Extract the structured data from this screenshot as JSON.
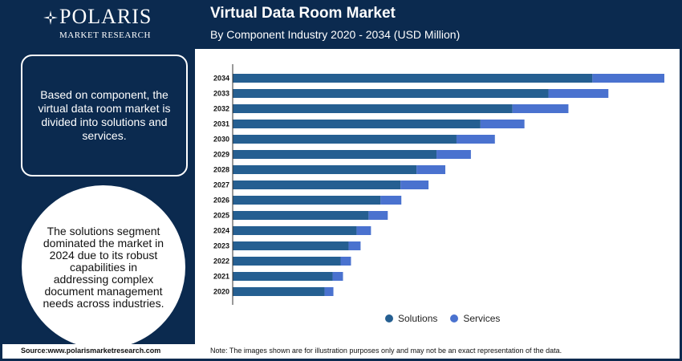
{
  "header": {
    "logo_text": "POLARIS",
    "logo_subtitle": "MARKET RESEARCH",
    "title": "Virtual Data Room Market",
    "subtitle": "By Component Industry 2020 - 2034 (USD Million)"
  },
  "left_panel": {
    "box_text": "Based on component, the virtual data room market is divided into solutions and services.",
    "circle_text": "The solutions segment dominated the market in 2024 due to its robust capabilities in addressing complex document management needs across industries."
  },
  "footer": {
    "source": "Source:www.polarismarketresearch.com",
    "note": "Note: The images shown are for illustration purposes only and may not be an exact representation of the data."
  },
  "colors": {
    "background": "#ffffff",
    "navy": "#0b2a4f",
    "solutions": "#255f91",
    "services": "#4a72cf"
  },
  "chart_data": {
    "type": "bar",
    "orientation": "horizontal",
    "stacked": true,
    "categories": [
      "2034",
      "2033",
      "2032",
      "2031",
      "2030",
      "2029",
      "2028",
      "2027",
      "2026",
      "2025",
      "2024",
      "2023",
      "2022",
      "2021",
      "2020"
    ],
    "series": [
      {
        "name": "Solutions",
        "color": "#255f91",
        "values": [
          4500,
          3950,
          3500,
          3100,
          2800,
          2550,
          2300,
          2100,
          1850,
          1700,
          1550,
          1450,
          1350,
          1250,
          1150
        ]
      },
      {
        "name": "Services",
        "color": "#4a72cf",
        "values": [
          900,
          750,
          700,
          550,
          480,
          430,
          360,
          350,
          260,
          240,
          180,
          150,
          130,
          130,
          110
        ]
      }
    ],
    "legend_position": "bottom",
    "grid": false
  }
}
